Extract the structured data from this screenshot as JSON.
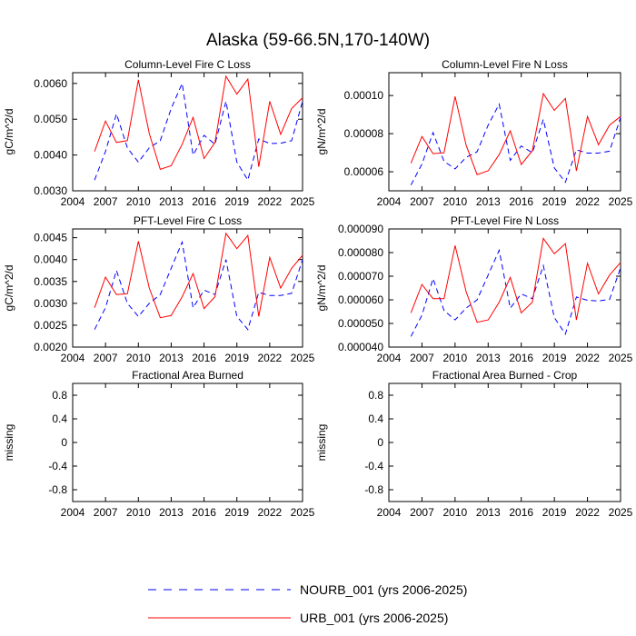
{
  "figure": {
    "title": "Alaska (59-66.5N,170-140W)"
  },
  "legend": [
    {
      "label": "NOURB_001 (yrs 2006-2025)",
      "color": "#0000ff",
      "dash": "dashed"
    },
    {
      "label": "URB_001 (yrs 2006-2025)",
      "color": "#ff0000",
      "dash": "solid"
    }
  ],
  "chart_data": [
    {
      "type": "line",
      "title": "Column-Level Fire C Loss",
      "ylabel": "gC/m^2/d",
      "xlim": [
        2004,
        2025
      ],
      "ylim": [
        0.003,
        0.0063
      ],
      "xticks": [
        2004,
        2007,
        2010,
        2013,
        2016,
        2019,
        2022,
        2025
      ],
      "xtick_labels": [
        "2004",
        "2007",
        "2010",
        "2013",
        "2016",
        "2019",
        "2022",
        "2025"
      ],
      "yticks": [
        0.003,
        0.004,
        0.005,
        0.006
      ],
      "ytick_labels": [
        "0.0030",
        "0.0040",
        "0.0050",
        "0.0060"
      ],
      "x": [
        2006,
        2007,
        2008,
        2009,
        2010,
        2011,
        2012,
        2013,
        2014,
        2015,
        2016,
        2017,
        2018,
        2019,
        2020,
        2021,
        2022,
        2023,
        2024,
        2025
      ],
      "series": [
        {
          "name": "NOURB_001 (yrs 2006-2025)",
          "color": "#0000ff",
          "dash": "dashed",
          "values": [
            0.0033,
            0.0041,
            0.00515,
            0.0042,
            0.0038,
            0.0042,
            0.0044,
            0.0053,
            0.006,
            0.004,
            0.00455,
            0.0043,
            0.0055,
            0.0038,
            0.0033,
            0.00445,
            0.00432,
            0.00433,
            0.0044,
            0.0055
          ]
        },
        {
          "name": "URB_001 (yrs 2006-2025)",
          "color": "#ff0000",
          "dash": "solid",
          "values": [
            0.0041,
            0.00495,
            0.00435,
            0.0044,
            0.0061,
            0.0046,
            0.0036,
            0.0037,
            0.0043,
            0.00505,
            0.0039,
            0.00435,
            0.0062,
            0.0057,
            0.00612,
            0.00367,
            0.0055,
            0.00458,
            0.0053,
            0.0056
          ]
        }
      ]
    },
    {
      "type": "line",
      "title": "Column-Level Fire N Loss",
      "ylabel": "gN/m^2/d",
      "xlim": [
        2004,
        2025
      ],
      "ylim": [
        5e-05,
        0.000112
      ],
      "xticks": [
        2004,
        2007,
        2010,
        2013,
        2016,
        2019,
        2022,
        2025
      ],
      "xtick_labels": [
        "2004",
        "2007",
        "2010",
        "2013",
        "2016",
        "2019",
        "2022",
        "2025"
      ],
      "yticks": [
        6e-05,
        8e-05,
        0.0001
      ],
      "ytick_labels": [
        "0.00006",
        "0.00008",
        "0.00010"
      ],
      "x": [
        2006,
        2007,
        2008,
        2009,
        2010,
        2011,
        2012,
        2013,
        2014,
        2015,
        2016,
        2017,
        2018,
        2019,
        2020,
        2021,
        2022,
        2023,
        2024,
        2025
      ],
      "series": [
        {
          "name": "NOURB_001 (yrs 2006-2025)",
          "color": "#0000ff",
          "dash": "dashed",
          "values": [
            5.3e-05,
            6.4e-05,
            8.05e-05,
            6.55e-05,
            6.15e-05,
            6.75e-05,
            7.05e-05,
            8.45e-05,
            9.55e-05,
            6.6e-05,
            7.35e-05,
            7e-05,
            8.75e-05,
            6.2e-05,
            5.45e-05,
            7.15e-05,
            6.98e-05,
            6.98e-05,
            7.08e-05,
            8.85e-05
          ]
        },
        {
          "name": "URB_001 (yrs 2006-2025)",
          "color": "#ff0000",
          "dash": "solid",
          "values": [
            6.45e-05,
            7.85e-05,
            6.95e-05,
            7e-05,
            9.95e-05,
            7.4e-05,
            5.85e-05,
            6.05e-05,
            6.9e-05,
            8.15e-05,
            6.38e-05,
            7.1e-05,
            0.000101,
            9.22e-05,
            9.85e-05,
            6.05e-05,
            8.9e-05,
            7.42e-05,
            8.45e-05,
            8.9e-05
          ]
        }
      ]
    },
    {
      "type": "line",
      "title": "PFT-Level Fire C Loss",
      "ylabel": "gC/m^2/d",
      "xlim": [
        2004,
        2025
      ],
      "ylim": [
        0.002,
        0.0047
      ],
      "xticks": [
        2004,
        2007,
        2010,
        2013,
        2016,
        2019,
        2022,
        2025
      ],
      "xtick_labels": [
        "2004",
        "2007",
        "2010",
        "2013",
        "2016",
        "2019",
        "2022",
        "2025"
      ],
      "yticks": [
        0.002,
        0.0025,
        0.003,
        0.0035,
        0.004,
        0.0045
      ],
      "ytick_labels": [
        "0.0020",
        "0.0025",
        "0.0030",
        "0.0035",
        "0.0040",
        "0.0045"
      ],
      "x": [
        2006,
        2007,
        2008,
        2009,
        2010,
        2011,
        2012,
        2013,
        2014,
        2015,
        2016,
        2017,
        2018,
        2019,
        2020,
        2021,
        2022,
        2023,
        2024,
        2025
      ],
      "series": [
        {
          "name": "NOURB_001 (yrs 2006-2025)",
          "color": "#0000ff",
          "dash": "dashed",
          "values": [
            0.0024,
            0.0029,
            0.00375,
            0.003,
            0.0027,
            0.003,
            0.0032,
            0.0038,
            0.0044,
            0.0029,
            0.0033,
            0.0032,
            0.004,
            0.0027,
            0.0024,
            0.00325,
            0.00318,
            0.00318,
            0.00323,
            0.004
          ]
        },
        {
          "name": "URB_001 (yrs 2006-2025)",
          "color": "#ff0000",
          "dash": "solid",
          "values": [
            0.0029,
            0.0036,
            0.0032,
            0.00322,
            0.00442,
            0.00335,
            0.00267,
            0.00272,
            0.00315,
            0.00368,
            0.00288,
            0.00315,
            0.0046,
            0.00425,
            0.00455,
            0.0027,
            0.00405,
            0.00335,
            0.0038,
            0.0041
          ]
        }
      ]
    },
    {
      "type": "line",
      "title": "PFT-Level Fire N Loss",
      "ylabel": "gN/m^2/d",
      "xlim": [
        2004,
        2025
      ],
      "ylim": [
        4e-05,
        9e-05
      ],
      "xticks": [
        2004,
        2007,
        2010,
        2013,
        2016,
        2019,
        2022,
        2025
      ],
      "xtick_labels": [
        "2004",
        "2007",
        "2010",
        "2013",
        "2016",
        "2019",
        "2022",
        "2025"
      ],
      "yticks": [
        4e-05,
        5e-05,
        6e-05,
        7e-05,
        8e-05,
        9e-05
      ],
      "ytick_labels": [
        "0.000040",
        "0.000050",
        "0.000060",
        "0.000070",
        "0.000080",
        "0.000090"
      ],
      "x": [
        2006,
        2007,
        2008,
        2009,
        2010,
        2011,
        2012,
        2013,
        2014,
        2015,
        2016,
        2017,
        2018,
        2019,
        2020,
        2021,
        2022,
        2023,
        2024,
        2025
      ],
      "series": [
        {
          "name": "NOURB_001 (yrs 2006-2025)",
          "color": "#0000ff",
          "dash": "dashed",
          "values": [
            4.45e-05,
            5.35e-05,
            6.9e-05,
            5.55e-05,
            5.15e-05,
            5.65e-05,
            6e-05,
            7.05e-05,
            8.1e-05,
            5.65e-05,
            6.25e-05,
            6.05e-05,
            7.45e-05,
            5.25e-05,
            4.55e-05,
            6.12e-05,
            5.98e-05,
            5.95e-05,
            6.02e-05,
            7.35e-05
          ]
        },
        {
          "name": "URB_001 (yrs 2006-2025)",
          "color": "#ff0000",
          "dash": "solid",
          "values": [
            5.45e-05,
            6.65e-05,
            6.05e-05,
            6.05e-05,
            8.3e-05,
            6.35e-05,
            5.05e-05,
            5.15e-05,
            5.9e-05,
            6.95e-05,
            5.45e-05,
            5.9e-05,
            8.6e-05,
            7.95e-05,
            8.38e-05,
            5.15e-05,
            7.55e-05,
            6.25e-05,
            7.05e-05,
            7.58e-05
          ]
        }
      ]
    },
    {
      "type": "line",
      "title": "Fractional Area Burned",
      "ylabel": "missing",
      "xlim": [
        2004,
        2025
      ],
      "ylim": [
        -1,
        1
      ],
      "xticks": [
        2004,
        2007,
        2010,
        2013,
        2016,
        2019,
        2022,
        2025
      ],
      "xtick_labels": [
        "2004",
        "2007",
        "2010",
        "2013",
        "2016",
        "2019",
        "2022",
        "2025"
      ],
      "yticks": [
        -0.8,
        -0.4,
        0,
        0.4,
        0.8
      ],
      "ytick_labels": [
        "-0.8",
        "-0.4",
        "0",
        "0.4",
        "0.8"
      ],
      "x": [],
      "series": []
    },
    {
      "type": "line",
      "title": "Fractional Area Burned - Crop",
      "ylabel": "missing",
      "xlim": [
        2004,
        2025
      ],
      "ylim": [
        -1,
        1
      ],
      "xticks": [
        2004,
        2007,
        2010,
        2013,
        2016,
        2019,
        2022,
        2025
      ],
      "xtick_labels": [
        "2004",
        "2007",
        "2010",
        "2013",
        "2016",
        "2019",
        "2022",
        "2025"
      ],
      "yticks": [
        -0.8,
        -0.4,
        0,
        0.4,
        0.8
      ],
      "ytick_labels": [
        "-0.8",
        "-0.4",
        "0",
        "0.4",
        "0.8"
      ],
      "x": [],
      "series": []
    }
  ]
}
